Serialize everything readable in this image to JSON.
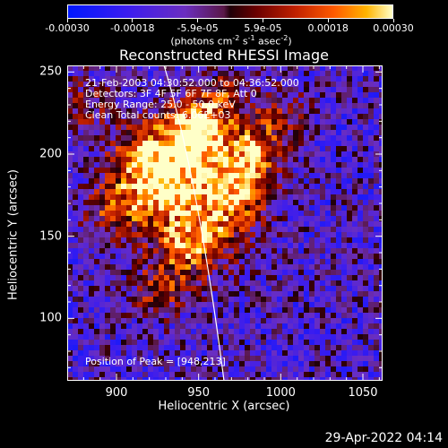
{
  "colorbar": {
    "ticks": [
      "-0.00030",
      "-0.00018",
      "-5.9e-05",
      "5.9e-05",
      "0.00018",
      "0.00030"
    ],
    "units_prefix": "(photons cm",
    "units_exp1": "-2",
    "units_mid1": " s",
    "units_exp2": "-1",
    "units_mid2": " asec",
    "units_exp3": "-2",
    "units_suffix": ")"
  },
  "chart_data": {
    "type": "heatmap",
    "title": "Reconstructed RHESSI Image",
    "xlabel": "Heliocentric X (arcsec)",
    "ylabel": "Heliocentric Y (arcsec)",
    "xlim": [
      870,
      1062
    ],
    "ylim": [
      62,
      254
    ],
    "xticks": [
      900,
      950,
      1000,
      1050
    ],
    "yticks": [
      100,
      150,
      200,
      250
    ],
    "color_range": [
      -0.0003,
      0.0003
    ],
    "colormap": "blue-purple-black-red-yellow-white",
    "peak_position": [
      948,
      213
    ],
    "limb_curve": true,
    "annotations": {
      "time_range": "21-Feb-2003 04:30:52.000 to 04:36:52.000",
      "detectors": "Detectors: 3F 4F 5F 6F 7F 8F, Att 0",
      "energy": "Energy Range: 25.0 - 50.0 keV",
      "method": "Clean     Total counts: 6.06E+03",
      "peak": "Position of Peak = [948,213]"
    }
  },
  "timestamp": "29-Apr-2022 04:14"
}
